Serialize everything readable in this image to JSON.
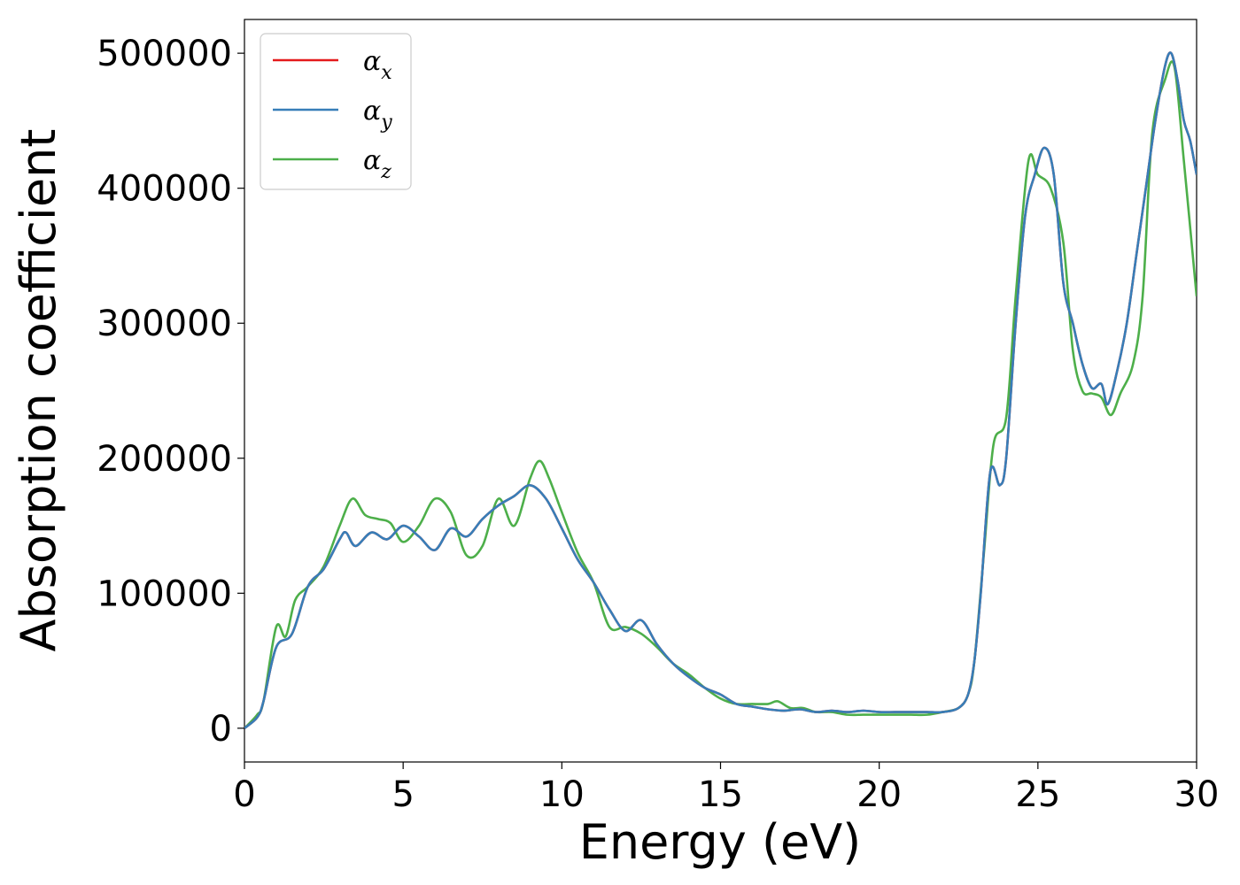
{
  "chart_data": {
    "type": "line",
    "title": "",
    "xlabel": "Energy (eV)",
    "ylabel": "Absorption coefficient",
    "xlim": [
      0,
      30
    ],
    "ylim": [
      -25000,
      525000
    ],
    "x_ticks": [
      0,
      5,
      10,
      15,
      20,
      25,
      30
    ],
    "y_ticks": [
      0,
      100000,
      200000,
      300000,
      400000,
      500000
    ],
    "x_tick_labels": [
      "0",
      "5",
      "10",
      "15",
      "20",
      "25",
      "30"
    ],
    "y_tick_labels": [
      "0",
      "100000",
      "200000",
      "300000",
      "400000",
      "500000"
    ],
    "grid": false,
    "legend_position": "upper-left",
    "series": [
      {
        "name": "αx",
        "color": "#e41a1c",
        "x": [
          0,
          0.4,
          0.6,
          1.0,
          1.5,
          2.0,
          2.5,
          3.0,
          3.2,
          3.5,
          4.0,
          4.5,
          5.0,
          5.5,
          6.0,
          6.5,
          7.0,
          7.5,
          8.0,
          8.5,
          9.0,
          9.5,
          10.0,
          10.5,
          11.0,
          11.5,
          12.0,
          12.5,
          13.0,
          13.5,
          14.0,
          14.5,
          15.0,
          15.5,
          16.0,
          16.5,
          17.0,
          17.5,
          18.0,
          18.5,
          19.0,
          19.5,
          20.0,
          20.5,
          21.0,
          21.5,
          22.0,
          22.5,
          22.8,
          23.0,
          23.2,
          23.5,
          23.8,
          24.0,
          24.3,
          24.6,
          24.9,
          25.2,
          25.5,
          25.8,
          26.1,
          26.4,
          26.7,
          27.0,
          27.2,
          27.5,
          27.8,
          28.1,
          28.4,
          28.7,
          29.0,
          29.2,
          29.4,
          29.6,
          29.8,
          30.0
        ],
        "y": [
          0,
          8000,
          20000,
          60000,
          70000,
          105000,
          118000,
          140000,
          145000,
          135000,
          145000,
          140000,
          150000,
          142000,
          132000,
          148000,
          142000,
          155000,
          165000,
          172000,
          180000,
          170000,
          148000,
          125000,
          108000,
          88000,
          72000,
          80000,
          62000,
          48000,
          38000,
          30000,
          25000,
          18000,
          16000,
          14000,
          13000,
          14000,
          12000,
          13000,
          12000,
          13000,
          12000,
          12000,
          12000,
          12000,
          12000,
          15000,
          25000,
          50000,
          100000,
          190000,
          180000,
          200000,
          300000,
          380000,
          410000,
          430000,
          410000,
          330000,
          300000,
          270000,
          252000,
          255000,
          240000,
          265000,
          300000,
          350000,
          400000,
          450000,
          490000,
          500000,
          480000,
          450000,
          435000,
          410000
        ]
      },
      {
        "name": "αy",
        "color": "#377eb8",
        "x": [
          0,
          0.4,
          0.6,
          1.0,
          1.5,
          2.0,
          2.5,
          3.0,
          3.2,
          3.5,
          4.0,
          4.5,
          5.0,
          5.5,
          6.0,
          6.5,
          7.0,
          7.5,
          8.0,
          8.5,
          9.0,
          9.5,
          10.0,
          10.5,
          11.0,
          11.5,
          12.0,
          12.5,
          13.0,
          13.5,
          14.0,
          14.5,
          15.0,
          15.5,
          16.0,
          16.5,
          17.0,
          17.5,
          18.0,
          18.5,
          19.0,
          19.5,
          20.0,
          20.5,
          21.0,
          21.5,
          22.0,
          22.5,
          22.8,
          23.0,
          23.2,
          23.5,
          23.8,
          24.0,
          24.3,
          24.6,
          24.9,
          25.2,
          25.5,
          25.8,
          26.1,
          26.4,
          26.7,
          27.0,
          27.2,
          27.5,
          27.8,
          28.1,
          28.4,
          28.7,
          29.0,
          29.2,
          29.4,
          29.6,
          29.8,
          30.0
        ],
        "y": [
          0,
          8000,
          20000,
          60000,
          70000,
          105000,
          118000,
          140000,
          145000,
          135000,
          145000,
          140000,
          150000,
          142000,
          132000,
          148000,
          142000,
          155000,
          165000,
          172000,
          180000,
          170000,
          148000,
          125000,
          108000,
          88000,
          72000,
          80000,
          62000,
          48000,
          38000,
          30000,
          25000,
          18000,
          16000,
          14000,
          13000,
          14000,
          12000,
          13000,
          12000,
          13000,
          12000,
          12000,
          12000,
          12000,
          12000,
          15000,
          25000,
          50000,
          100000,
          190000,
          180000,
          200000,
          300000,
          380000,
          410000,
          430000,
          410000,
          330000,
          300000,
          270000,
          252000,
          255000,
          240000,
          265000,
          300000,
          350000,
          400000,
          450000,
          490000,
          500000,
          480000,
          450000,
          435000,
          410000
        ]
      },
      {
        "name": "αz",
        "color": "#4daf4a",
        "x": [
          0,
          0.4,
          0.6,
          1.0,
          1.3,
          1.6,
          2.0,
          2.5,
          3.0,
          3.4,
          3.8,
          4.2,
          4.6,
          5.0,
          5.5,
          6.0,
          6.5,
          7.0,
          7.5,
          8.0,
          8.5,
          9.0,
          9.3,
          9.6,
          10.0,
          10.5,
          11.0,
          11.5,
          12.0,
          12.5,
          13.0,
          13.5,
          14.0,
          14.5,
          15.0,
          15.5,
          16.0,
          16.5,
          16.8,
          17.2,
          17.6,
          18.0,
          18.5,
          19.0,
          19.5,
          20.0,
          20.5,
          21.0,
          21.5,
          22.0,
          22.5,
          22.8,
          23.0,
          23.3,
          23.6,
          24.0,
          24.3,
          24.7,
          25.0,
          25.4,
          25.8,
          26.1,
          26.4,
          26.7,
          27.0,
          27.3,
          27.6,
          28.0,
          28.3,
          28.6,
          29.0,
          29.3,
          29.6,
          30.0
        ],
        "y": [
          0,
          10000,
          20000,
          75000,
          68000,
          95000,
          105000,
          120000,
          150000,
          170000,
          158000,
          155000,
          152000,
          138000,
          150000,
          170000,
          160000,
          128000,
          135000,
          170000,
          150000,
          185000,
          198000,
          185000,
          160000,
          130000,
          108000,
          75000,
          75000,
          70000,
          60000,
          48000,
          40000,
          30000,
          22000,
          18000,
          18000,
          18000,
          20000,
          15000,
          15000,
          12000,
          12000,
          10000,
          10000,
          10000,
          10000,
          10000,
          10000,
          12000,
          15000,
          25000,
          50000,
          130000,
          210000,
          230000,
          320000,
          420000,
          410000,
          400000,
          360000,
          280000,
          250000,
          248000,
          245000,
          232000,
          248000,
          270000,
          320000,
          440000,
          480000,
          490000,
          420000,
          320000
        ]
      }
    ]
  }
}
